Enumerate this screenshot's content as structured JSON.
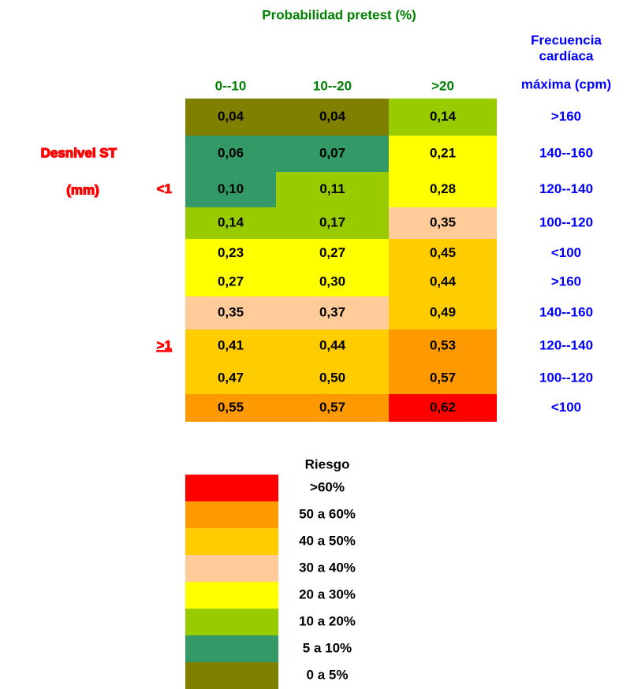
{
  "header": {
    "title": "Probabilidad pretest (%)",
    "columns": [
      "0--10",
      "10--20",
      ">20"
    ],
    "right_title": [
      "Frecuencia",
      "cardíaca",
      "máxima (cpm)"
    ]
  },
  "side": {
    "title": "Desnivel ST",
    "unit": "(mm)",
    "groups": [
      "<1",
      ">1"
    ]
  },
  "table": {
    "rows": [
      {
        "cells": [
          {
            "text": "0,04",
            "color": "#808000"
          },
          {
            "text": "0,04",
            "color": "#808000"
          },
          {
            "text": "0,14",
            "color": "#99cc00"
          }
        ],
        "fc": ">160"
      },
      {
        "cells": [
          {
            "text": "0,06",
            "color": "#339966"
          },
          {
            "text": "0,07",
            "color": "#339966"
          },
          {
            "text": "0,21",
            "color": "#ffff00"
          }
        ],
        "fc": "140--160"
      },
      {
        "cells": [
          {
            "text": "0,10",
            "color": "#339966"
          },
          {
            "text": "0,11",
            "color": "#99cc00"
          },
          {
            "text": "0,28",
            "color": "#ffff00"
          }
        ],
        "fc": "120--140"
      },
      {
        "cells": [
          {
            "text": "0,14",
            "color": "#99cc00"
          },
          {
            "text": "0,17",
            "color": "#99cc00"
          },
          {
            "text": "0,35",
            "color": "#ffcc99"
          }
        ],
        "fc": "100--120"
      },
      {
        "cells": [
          {
            "text": "0,23",
            "color": "#ffff00"
          },
          {
            "text": "0,27",
            "color": "#ffff00"
          },
          {
            "text": "0,45",
            "color": "#ffcc00"
          }
        ],
        "fc": "<100"
      },
      {
        "cells": [
          {
            "text": "0,27",
            "color": "#ffff00"
          },
          {
            "text": "0,30",
            "color": "#ffff00"
          },
          {
            "text": "0,44",
            "color": "#ffcc00"
          }
        ],
        "fc": ">160"
      },
      {
        "cells": [
          {
            "text": "0,35",
            "color": "#ffcc99"
          },
          {
            "text": "0,37",
            "color": "#ffcc99"
          },
          {
            "text": "0,49",
            "color": "#ffcc00"
          }
        ],
        "fc": "140--160"
      },
      {
        "cells": [
          {
            "text": "0,41",
            "color": "#ffcc00"
          },
          {
            "text": "0,44",
            "color": "#ffcc00"
          },
          {
            "text": "0,53",
            "color": "#ff9900"
          }
        ],
        "fc": "120--140"
      },
      {
        "cells": [
          {
            "text": "0,47",
            "color": "#ffcc00"
          },
          {
            "text": "0,50",
            "color": "#ffcc00"
          },
          {
            "text": "0,57",
            "color": "#ff9900"
          }
        ],
        "fc": "100--120"
      },
      {
        "cells": [
          {
            "text": "0,55",
            "color": "#ff9900"
          },
          {
            "text": "0,57",
            "color": "#ff9900"
          },
          {
            "text": "0,62",
            "color": "#ff0000"
          }
        ],
        "fc": "<100"
      }
    ]
  },
  "legend": {
    "title": "Riesgo",
    "items": [
      {
        "label": ">60%",
        "color": "#ff0000"
      },
      {
        "label": "50 a 60%",
        "color": "#ff9900"
      },
      {
        "label": "40 a 50%",
        "color": "#ffcc00"
      },
      {
        "label": "30 a 40%",
        "color": "#ffcc99"
      },
      {
        "label": "20 a 30%",
        "color": "#ffff00"
      },
      {
        "label": "10 a 20%",
        "color": "#99cc00"
      },
      {
        "label": "5 a 10%",
        "color": "#339966"
      },
      {
        "label": "0 a 5%",
        "color": "#808000"
      }
    ]
  }
}
